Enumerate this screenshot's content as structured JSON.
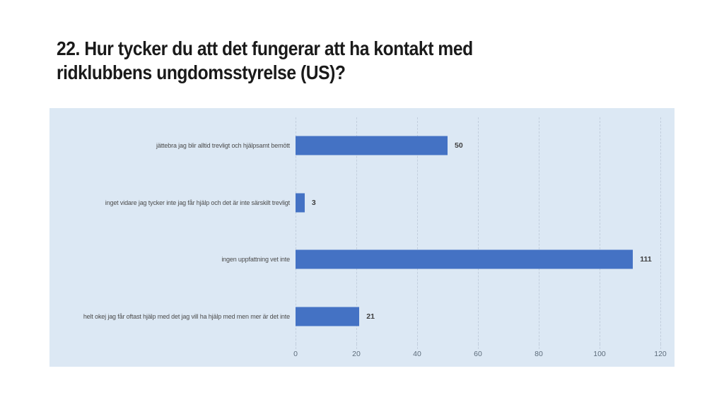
{
  "title": "22. Hur tycker du att det fungerar att ha kontakt med ridklubbens ungdomsstyrelse (US)?",
  "title_lines": [
    "22. Hur tycker du att det fungerar att ha kontakt med",
    "ridklubbens ungdomsstyrelse (US)?"
  ],
  "colors": {
    "bar": "#4472c4",
    "panel_bg": "#dce8f4",
    "gridline": "#c2cedd",
    "title_text": "#1a1a1a",
    "category_text": "#4c4c4c",
    "value_text": "#3e3e3e",
    "tick_text": "#5d6c7b"
  },
  "chart_data": {
    "type": "bar",
    "orientation": "horizontal",
    "title": "22. Hur tycker du att det fungerar att ha kontakt med ridklubbens ungdomsstyrelse (US)?",
    "categories": [
      "jättebra jag blir alltid trevligt och hjälpsamt bemött",
      "inget vidare jag tycker inte jag får hjälp och det är inte särskilt trevligt",
      "ingen uppfattning vet inte",
      "helt okej jag får oftast hjälp med det jag vill ha hjälp med men mer är det inte"
    ],
    "values": [
      50,
      3,
      111,
      21
    ],
    "value_labels": [
      "50",
      "3",
      "111",
      "21"
    ],
    "xlabel": "",
    "ylabel": "",
    "xlim": [
      0,
      120
    ],
    "x_ticks": [
      0,
      20,
      40,
      60,
      80,
      100,
      120
    ],
    "x_tick_labels": [
      "0",
      "20",
      "40",
      "60",
      "80",
      "100",
      "120"
    ],
    "grid": true,
    "legend": "none"
  }
}
